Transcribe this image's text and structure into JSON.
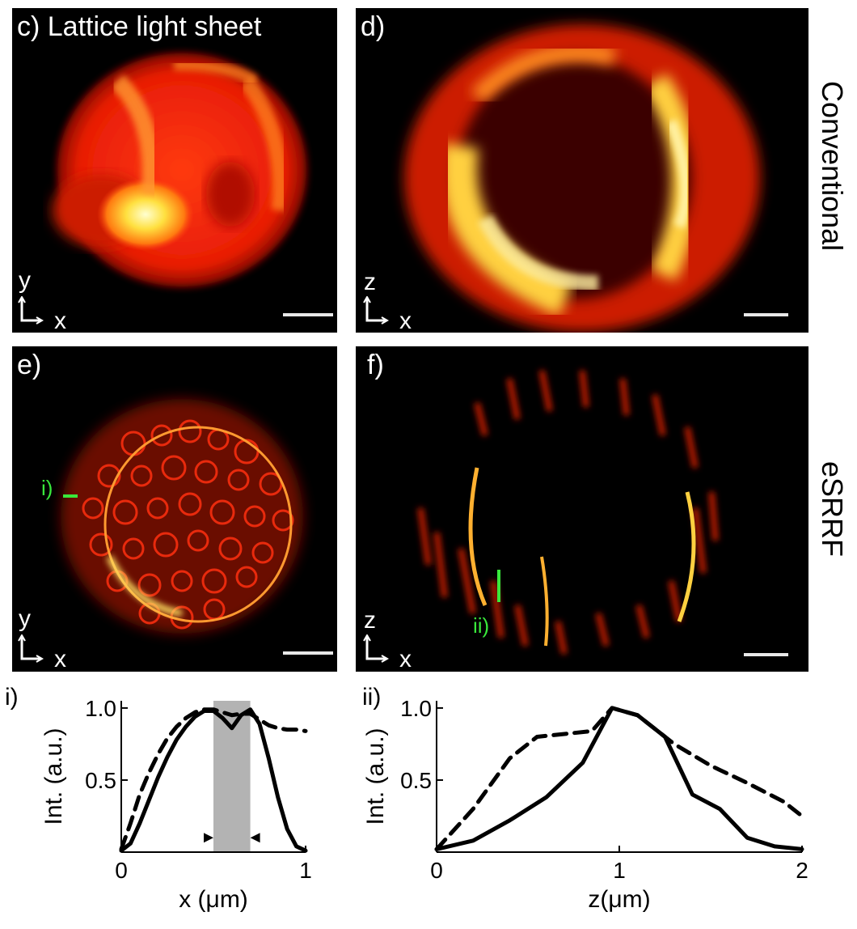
{
  "panels": {
    "c": {
      "label": "c) Lattice light sheet",
      "axis_v": "y",
      "axis_h": "x"
    },
    "d": {
      "label": "d)",
      "axis_v": "z",
      "axis_h": "x"
    },
    "e": {
      "label": "e)",
      "axis_v": "y",
      "axis_h": "x",
      "marker": "i)"
    },
    "f": {
      "label": "f)",
      "axis_v": "z",
      "axis_h": "x",
      "marker": "ii)"
    }
  },
  "row_labels": {
    "top": "Conventional",
    "bottom": "eSRRF"
  },
  "graphs": {
    "i": {
      "label": "i)"
    },
    "ii": {
      "label": "ii)"
    }
  },
  "colors": {
    "accent_green": "#39e83b",
    "shade": "#b3b3b3"
  },
  "chart_data": [
    {
      "type": "line",
      "title": "i)",
      "xlabel": "x (μm)",
      "ylabel": "Int. (a.u.)",
      "xlim": [
        0,
        1
      ],
      "ylim": [
        0,
        1.05
      ],
      "xticks": [
        "0",
        "1"
      ],
      "yticks": [
        "0.5",
        "1.0"
      ],
      "shaded_region": [
        0.5,
        0.7
      ],
      "series": [
        {
          "style": "solid",
          "x": [
            0,
            0.05,
            0.1,
            0.15,
            0.2,
            0.25,
            0.3,
            0.35,
            0.4,
            0.45,
            0.5,
            0.55,
            0.6,
            0.65,
            0.7,
            0.75,
            0.8,
            0.85,
            0.9,
            0.95,
            1.0
          ],
          "y": [
            0.01,
            0.06,
            0.2,
            0.36,
            0.52,
            0.66,
            0.78,
            0.87,
            0.94,
            0.98,
            0.98,
            0.93,
            0.86,
            0.95,
            0.99,
            0.89,
            0.65,
            0.38,
            0.16,
            0.04,
            0.01
          ]
        },
        {
          "style": "dashed",
          "x": [
            0,
            0.05,
            0.1,
            0.15,
            0.2,
            0.25,
            0.3,
            0.35,
            0.4,
            0.45,
            0.5,
            0.55,
            0.6,
            0.65,
            0.7,
            0.75,
            0.8,
            0.85,
            0.9,
            0.95,
            1.0
          ],
          "y": [
            0.02,
            0.2,
            0.4,
            0.55,
            0.68,
            0.79,
            0.87,
            0.93,
            0.97,
            0.99,
            0.99,
            0.97,
            0.95,
            0.96,
            0.96,
            0.92,
            0.88,
            0.86,
            0.85,
            0.85,
            0.84
          ]
        }
      ]
    },
    {
      "type": "line",
      "title": "ii)",
      "xlabel": "z(μm)",
      "ylabel": "Int. (a.u.)",
      "xlim": [
        0,
        2
      ],
      "ylim": [
        0,
        1.05
      ],
      "xticks": [
        "0",
        "1",
        "2"
      ],
      "yticks": [
        "0.5",
        "1.0"
      ],
      "series": [
        {
          "style": "solid",
          "x": [
            0,
            0.2,
            0.4,
            0.6,
            0.8,
            0.96,
            1.1,
            1.25,
            1.4,
            1.55,
            1.7,
            1.85,
            2.0
          ],
          "y": [
            0.02,
            0.08,
            0.22,
            0.38,
            0.62,
            1.0,
            0.95,
            0.8,
            0.4,
            0.3,
            0.1,
            0.04,
            0.02
          ]
        },
        {
          "style": "dashed",
          "x": [
            0,
            0.2,
            0.4,
            0.55,
            0.7,
            0.85,
            0.96,
            1.1,
            1.3,
            1.5,
            1.7,
            1.9,
            2.0
          ],
          "y": [
            0.02,
            0.3,
            0.65,
            0.8,
            0.82,
            0.84,
            1.0,
            0.95,
            0.75,
            0.6,
            0.48,
            0.35,
            0.25
          ]
        }
      ]
    }
  ]
}
